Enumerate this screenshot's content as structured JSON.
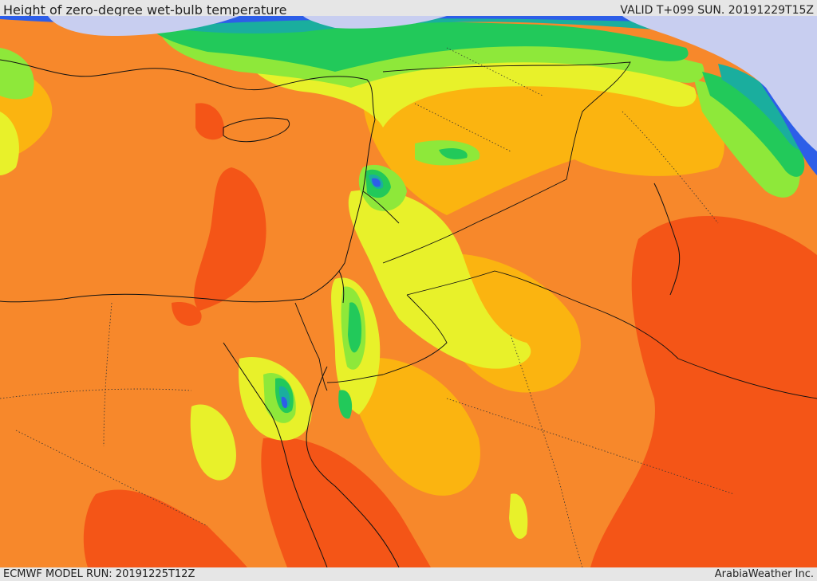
{
  "header": {
    "title": "Height of zero-degree wet-bulb temperature",
    "valid": "VALID T+099 SUN. 20191229T15Z"
  },
  "footer": {
    "model_run": "ECMWF MODEL RUN: 20191225T12Z",
    "credit": "ArabiaWeather Inc."
  },
  "colors": {
    "red_orange": "#f45517",
    "orange": "#f7882b",
    "amber": "#fbb410",
    "yellow": "#e8f12a",
    "light_green": "#8ee83a",
    "green": "#22c95a",
    "teal": "#1aae9e",
    "blue": "#2d5ee8",
    "lavender": "#c8cef0",
    "border_line": "#111111"
  }
}
